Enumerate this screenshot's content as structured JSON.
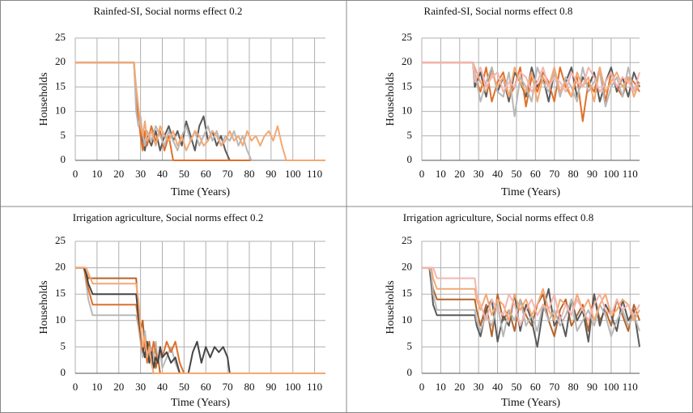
{
  "chart_data": [
    {
      "type": "line",
      "title": "Rainfed-SI, Social norms effect 0.2",
      "xlabel": "Time (Years)",
      "ylabel": "Households",
      "xlim": [
        0,
        115
      ],
      "xticks": [
        0,
        10,
        20,
        30,
        40,
        50,
        60,
        70,
        80,
        90,
        100,
        110
      ],
      "ylim": [
        0,
        25
      ],
      "yticks": [
        0,
        5,
        10,
        15,
        20,
        25
      ],
      "grid": true,
      "x": [
        0,
        26,
        27,
        28,
        29,
        30,
        31,
        32,
        33,
        35,
        37,
        39,
        41,
        43,
        45,
        47,
        49,
        51,
        53,
        55,
        57,
        59,
        61,
        63,
        65,
        67,
        69,
        71,
        73,
        75,
        77,
        79,
        81,
        83,
        85,
        87,
        89,
        91,
        93,
        95,
        97,
        115
      ],
      "series": [
        {
          "color": "#5a5a5a",
          "values": [
            20,
            20,
            20,
            12,
            8,
            6,
            4,
            2,
            5,
            3,
            6,
            2,
            5,
            7,
            4,
            6,
            3,
            8,
            5,
            2,
            7,
            9,
            4,
            6,
            3,
            5,
            2,
            0,
            0,
            0,
            0,
            0,
            0,
            0,
            0,
            0,
            0,
            0,
            0,
            0,
            0,
            0
          ]
        },
        {
          "color": "#e0702a",
          "values": [
            20,
            20,
            20,
            14,
            9,
            5,
            2,
            6,
            3,
            7,
            4,
            6,
            2,
            5,
            0,
            0,
            0,
            0,
            0,
            0,
            0,
            0,
            0,
            0,
            0,
            0,
            0,
            0,
            0,
            0,
            0,
            0,
            0,
            0,
            0,
            0,
            0,
            0,
            0,
            0,
            0,
            0
          ]
        },
        {
          "color": "#b8b8b8",
          "values": [
            20,
            20,
            20,
            10,
            7,
            9,
            5,
            3,
            6,
            4,
            7,
            5,
            3,
            6,
            4,
            2,
            5,
            7,
            4,
            6,
            3,
            5,
            7,
            4,
            6,
            3,
            5,
            4,
            6,
            3,
            5,
            2,
            0,
            0,
            0,
            0,
            0,
            0,
            0,
            0,
            0,
            0
          ]
        },
        {
          "color": "#f4a872",
          "values": [
            20,
            20,
            20,
            15,
            11,
            7,
            5,
            8,
            4,
            6,
            3,
            7,
            5,
            4,
            6,
            3,
            5,
            2,
            4,
            6,
            5,
            3,
            4,
            6,
            5,
            3,
            4,
            6,
            4,
            5,
            3,
            6,
            4,
            5,
            3,
            5,
            6,
            4,
            7,
            3,
            0,
            0
          ]
        }
      ]
    },
    {
      "type": "line",
      "title": "Rainfed-SI, Social norms effect 0.8",
      "xlabel": "Time (Years)",
      "ylabel": "Households",
      "xlim": [
        0,
        115
      ],
      "xticks": [
        0,
        10,
        20,
        30,
        40,
        50,
        60,
        70,
        80,
        90,
        100,
        110
      ],
      "ylim": [
        0,
        25
      ],
      "yticks": [
        0,
        5,
        10,
        15,
        20,
        25
      ],
      "grid": true,
      "x": [
        0,
        27,
        28,
        31,
        34,
        37,
        40,
        43,
        46,
        49,
        52,
        55,
        58,
        61,
        64,
        67,
        70,
        73,
        76,
        79,
        82,
        85,
        88,
        91,
        94,
        97,
        100,
        103,
        106,
        109,
        112,
        115
      ],
      "series": [
        {
          "color": "#5a5a5a",
          "values": [
            20,
            20,
            15,
            18,
            13,
            19,
            14,
            17,
            12,
            18,
            16,
            13,
            19,
            15,
            17,
            12,
            18,
            14,
            16,
            19,
            13,
            17,
            15,
            18,
            12,
            16,
            19,
            14,
            17,
            13,
            18,
            15
          ]
        },
        {
          "color": "#e0702a",
          "values": [
            20,
            20,
            17,
            14,
            19,
            12,
            16,
            18,
            13,
            15,
            19,
            11,
            17,
            14,
            18,
            16,
            12,
            19,
            15,
            13,
            17,
            8,
            16,
            14,
            19,
            12,
            18,
            15,
            13,
            17,
            16,
            14
          ]
        },
        {
          "color": "#b8b8b8",
          "values": [
            20,
            20,
            18,
            12,
            16,
            19,
            14,
            13,
            18,
            9,
            17,
            15,
            12,
            19,
            16,
            14,
            18,
            13,
            17,
            15,
            12,
            19,
            14,
            16,
            18,
            11,
            15,
            17,
            13,
            19,
            14,
            16
          ]
        },
        {
          "color": "#f4a872",
          "values": [
            20,
            20,
            19,
            16,
            14,
            18,
            15,
            17,
            13,
            19,
            16,
            14,
            18,
            12,
            17,
            15,
            19,
            14,
            16,
            13,
            18,
            15,
            17,
            12,
            19,
            14,
            16,
            18,
            15,
            17,
            13,
            16
          ]
        },
        {
          "color": "#f5b5b0",
          "values": [
            20,
            20,
            16,
            19,
            15,
            17,
            18,
            14,
            16,
            15,
            18,
            17,
            14,
            16,
            19,
            15,
            17,
            16,
            14,
            18,
            16,
            15,
            19,
            17,
            14,
            16,
            18,
            15,
            17,
            16,
            14,
            18
          ]
        }
      ]
    },
    {
      "type": "line",
      "title": "Irrigation agriculture, Social norms effect 0.2",
      "xlabel": "Time (Years)",
      "ylabel": "Households",
      "xlim": [
        0,
        115
      ],
      "xticks": [
        0,
        10,
        20,
        30,
        40,
        50,
        60,
        70,
        80,
        90,
        100,
        110
      ],
      "ylim": [
        0,
        25
      ],
      "yticks": [
        0,
        5,
        10,
        15,
        20,
        25
      ],
      "grid": true,
      "x": [
        0,
        4,
        5,
        6,
        8,
        10,
        12,
        15,
        20,
        25,
        28,
        29,
        30,
        31,
        32,
        33,
        34,
        35,
        36,
        37,
        38,
        39,
        40,
        42,
        44,
        46,
        48,
        50,
        52,
        54,
        56,
        58,
        60,
        62,
        64,
        66,
        68,
        70,
        71,
        115
      ],
      "series": [
        {
          "color": "#b5652a",
          "values": [
            20,
            20,
            19,
            18,
            18,
            18,
            18,
            18,
            18,
            18,
            18,
            12,
            8,
            10,
            5,
            3,
            6,
            2,
            4,
            1,
            3,
            0,
            0,
            0,
            0,
            0,
            0,
            0,
            0,
            0,
            0,
            0,
            0,
            0,
            0,
            0,
            0,
            0,
            0,
            0
          ]
        },
        {
          "color": "#b8b8b8",
          "values": [
            20,
            20,
            17,
            14,
            11,
            11,
            11,
            11,
            11,
            11,
            11,
            9,
            6,
            3,
            8,
            4,
            2,
            5,
            3,
            6,
            2,
            4,
            1,
            3,
            5,
            2,
            0,
            0,
            0,
            0,
            0,
            0,
            0,
            0,
            0,
            0,
            0,
            0,
            0,
            0
          ]
        },
        {
          "color": "#e0702a",
          "values": [
            20,
            20,
            18,
            16,
            13,
            13,
            13,
            13,
            13,
            13,
            13,
            10,
            7,
            4,
            6,
            2,
            5,
            3,
            6,
            4,
            2,
            5,
            3,
            6,
            4,
            6,
            2,
            0,
            0,
            0,
            0,
            0,
            0,
            0,
            0,
            0,
            0,
            0,
            0,
            0
          ]
        },
        {
          "color": "#454545",
          "values": [
            20,
            20,
            19,
            17,
            15,
            15,
            15,
            15,
            15,
            15,
            15,
            11,
            8,
            5,
            3,
            6,
            2,
            4,
            1,
            3,
            2,
            5,
            3,
            4,
            2,
            3,
            0,
            0,
            0,
            4,
            6,
            2,
            5,
            3,
            5,
            4,
            5,
            3,
            0,
            0
          ]
        },
        {
          "color": "#f4a872",
          "values": [
            20,
            20,
            20,
            19,
            17,
            17,
            17,
            17,
            17,
            17,
            17,
            14,
            9,
            5,
            7,
            3,
            5,
            2,
            0,
            0,
            0,
            0,
            0,
            0,
            0,
            0,
            0,
            0,
            0,
            0,
            0,
            0,
            0,
            0,
            0,
            0,
            0,
            0,
            0,
            0
          ]
        }
      ]
    },
    {
      "type": "line",
      "title": "Irrigation agriculture, Social norms effect 0.8",
      "xlabel": "Time (Years)",
      "ylabel": "Households",
      "xlim": [
        0,
        115
      ],
      "xticks": [
        0,
        10,
        20,
        30,
        40,
        50,
        60,
        70,
        80,
        90,
        100,
        110
      ],
      "ylim": [
        0,
        25
      ],
      "yticks": [
        0,
        5,
        10,
        15,
        20,
        25
      ],
      "grid": true,
      "x": [
        0,
        4,
        5,
        6,
        8,
        10,
        15,
        20,
        25,
        28,
        29,
        31,
        34,
        37,
        40,
        43,
        46,
        49,
        52,
        55,
        58,
        61,
        64,
        67,
        70,
        73,
        76,
        79,
        82,
        85,
        88,
        91,
        94,
        97,
        100,
        103,
        106,
        109,
        112,
        115
      ],
      "series": [
        {
          "color": "#b5652a",
          "values": [
            20,
            20,
            18,
            16,
            14,
            14,
            14,
            14,
            14,
            14,
            12,
            9,
            13,
            7,
            15,
            10,
            12,
            8,
            14,
            11,
            9,
            13,
            15,
            10,
            7,
            12,
            14,
            9,
            11,
            13,
            8,
            15,
            10,
            12,
            9,
            14,
            11,
            8,
            13,
            10
          ]
        },
        {
          "color": "#5a5a5a",
          "values": [
            20,
            20,
            17,
            13,
            11,
            11,
            11,
            11,
            11,
            11,
            9,
            7,
            12,
            14,
            6,
            11,
            9,
            15,
            8,
            13,
            10,
            5,
            12,
            16,
            9,
            11,
            7,
            14,
            10,
            12,
            6,
            15,
            9,
            13,
            11,
            8,
            14,
            10,
            12,
            5
          ]
        },
        {
          "color": "#b8b8b8",
          "values": [
            20,
            20,
            19,
            15,
            12,
            12,
            12,
            12,
            12,
            12,
            10,
            8,
            11,
            9,
            13,
            7,
            12,
            10,
            14,
            9,
            11,
            8,
            13,
            10,
            12,
            9,
            11,
            14,
            8,
            10,
            12,
            9,
            13,
            11,
            7,
            10,
            12,
            9,
            11,
            8
          ]
        },
        {
          "color": "#f4a872",
          "values": [
            20,
            20,
            20,
            18,
            16,
            16,
            16,
            16,
            16,
            16,
            14,
            12,
            15,
            11,
            14,
            13,
            10,
            15,
            12,
            14,
            11,
            13,
            16,
            12,
            10,
            14,
            13,
            11,
            15,
            12,
            14,
            10,
            13,
            15,
            11,
            12,
            14,
            13,
            10,
            12
          ]
        },
        {
          "color": "#f5b5b0",
          "values": [
            20,
            20,
            20,
            20,
            18,
            18,
            18,
            18,
            18,
            18,
            15,
            13,
            10,
            14,
            12,
            11,
            15,
            13,
            9,
            12,
            14,
            11,
            13,
            12,
            15,
            10,
            13,
            11,
            14,
            12,
            10,
            13,
            15,
            12,
            11,
            14,
            12,
            13,
            11,
            13
          ]
        }
      ]
    }
  ]
}
